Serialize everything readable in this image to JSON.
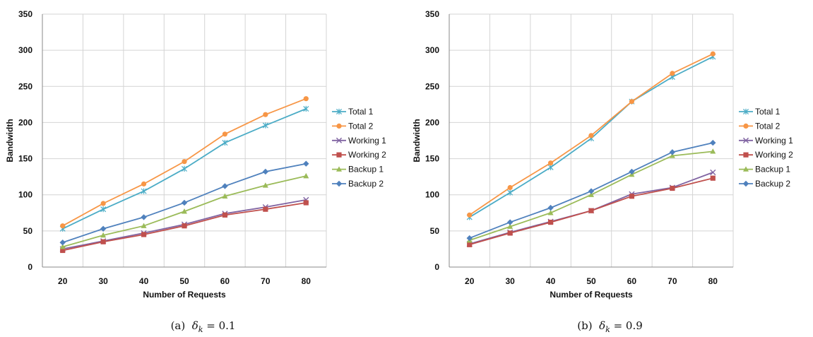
{
  "chart_data": [
    {
      "type": "line",
      "xlabel": "Number of Requests",
      "ylabel": "Bandwidth",
      "ylim": [
        0,
        350
      ],
      "yticks": [
        0,
        50,
        100,
        150,
        200,
        250,
        300,
        350
      ],
      "categories": [
        "20",
        "30",
        "40",
        "50",
        "60",
        "70",
        "80"
      ],
      "grid": true,
      "legend": "right",
      "caption": {
        "tag": "(a)",
        "symbol": "δ",
        "subscript": "k",
        "rest": " = 0.1"
      },
      "series": [
        {
          "name": "Total 1",
          "color": "#4bacc6",
          "marker": "star",
          "values": [
            53,
            80,
            105,
            136,
            172,
            196,
            219
          ]
        },
        {
          "name": "Total 2",
          "color": "#f79646",
          "marker": "circle",
          "values": [
            57,
            88,
            115,
            146,
            184,
            211,
            233
          ]
        },
        {
          "name": "Working 1",
          "color": "#8064a2",
          "marker": "x",
          "values": [
            25,
            36,
            47,
            59,
            74,
            83,
            93
          ]
        },
        {
          "name": "Working 2",
          "color": "#c0504d",
          "marker": "square",
          "values": [
            23,
            35,
            45,
            57,
            72,
            80,
            89
          ]
        },
        {
          "name": "Backup 1",
          "color": "#9bbb59",
          "marker": "triangle",
          "values": [
            28,
            44,
            57,
            77,
            98,
            113,
            126
          ]
        },
        {
          "name": "Backup 2",
          "color": "#4f81bd",
          "marker": "diamond",
          "values": [
            34,
            53,
            69,
            89,
            112,
            132,
            143
          ]
        }
      ]
    },
    {
      "type": "line",
      "xlabel": "Number of Requests",
      "ylabel": "Bandwidth",
      "ylim": [
        0,
        350
      ],
      "yticks": [
        0,
        50,
        100,
        150,
        200,
        250,
        300,
        350
      ],
      "categories": [
        "20",
        "30",
        "40",
        "50",
        "60",
        "70",
        "80"
      ],
      "grid": true,
      "legend": "right",
      "caption": {
        "tag": "(b)",
        "symbol": "δ",
        "subscript": "k",
        "rest": " = 0.9"
      },
      "series": [
        {
          "name": "Total 1",
          "color": "#4bacc6",
          "marker": "star",
          "values": [
            69,
            103,
            138,
            178,
            229,
            263,
            291
          ]
        },
        {
          "name": "Total 2",
          "color": "#f79646",
          "marker": "circle",
          "values": [
            72,
            110,
            144,
            182,
            229,
            268,
            295
          ]
        },
        {
          "name": "Working 1",
          "color": "#8064a2",
          "marker": "x",
          "values": [
            32,
            48,
            63,
            78,
            101,
            110,
            131
          ]
        },
        {
          "name": "Working 2",
          "color": "#c0504d",
          "marker": "square",
          "values": [
            31,
            47,
            62,
            78,
            98,
            109,
            123
          ]
        },
        {
          "name": "Backup 1",
          "color": "#9bbb59",
          "marker": "triangle",
          "values": [
            37,
            56,
            75,
            100,
            128,
            154,
            160
          ]
        },
        {
          "name": "Backup 2",
          "color": "#4f81bd",
          "marker": "diamond",
          "values": [
            40,
            62,
            82,
            105,
            132,
            159,
            172
          ]
        }
      ]
    }
  ]
}
